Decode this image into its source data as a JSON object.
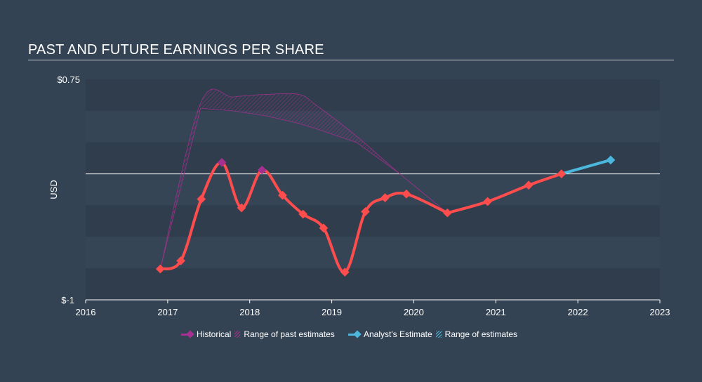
{
  "title": "PAST AND FUTURE EARNINGS PER SHARE",
  "chart_data": {
    "type": "line",
    "title": "PAST AND FUTURE EARNINGS PER SHARE",
    "ylabel": "USD",
    "ylim": [
      -1,
      0.75
    ],
    "xlim": [
      2016,
      2023
    ],
    "y_tick_labels": [
      "$0.75",
      "$-1"
    ],
    "x_tick_labels": [
      "2016",
      "2017",
      "2018",
      "2019",
      "2020",
      "2021",
      "2022",
      "2023"
    ],
    "grid": "horizontal bands",
    "legend_position": "bottom",
    "colors": {
      "historical": "#a6308f",
      "eps_line": "#ff4c4c",
      "analyst": "#4bb7dc"
    },
    "series": [
      {
        "name": "Historical",
        "x": [
          2016.91,
          2017.16,
          2017.41,
          2017.66,
          2017.9,
          2018.15,
          2018.4,
          2018.65,
          2018.9,
          2019.16,
          2019.41,
          2019.65,
          2019.91,
          2020.41
        ],
        "y": [
          -0.755,
          -0.69,
          -0.2,
          0.09,
          -0.27,
          0.03,
          -0.17,
          -0.32,
          -0.43,
          -0.78,
          -0.3,
          -0.19,
          -0.16,
          -0.31
        ]
      },
      {
        "name": "Range of past estimates",
        "x": [
          2016.91,
          2017.4,
          2017.8,
          2018.2,
          2018.6,
          2018.8,
          2019.3,
          2019.83,
          2020.41
        ],
        "upper": [
          -0.755,
          0.56,
          0.61,
          0.63,
          0.63,
          0.55,
          0.3,
          0.0,
          -0.31
        ],
        "lower": [
          -0.755,
          0.52,
          0.5,
          0.46,
          0.4,
          0.36,
          0.25,
          0.0,
          -0.31
        ]
      },
      {
        "name": "Analyst's Estimate",
        "x": [
          2020.41,
          2020.9,
          2021.4,
          2021.8,
          2022.4
        ],
        "y": [
          -0.31,
          -0.22,
          -0.09,
          0.0,
          0.11
        ]
      },
      {
        "name": "Range of estimates",
        "x": [
          2020.41,
          2022.4
        ],
        "upper": [
          -0.31,
          0.11
        ],
        "lower": [
          -0.31,
          0.11
        ]
      }
    ]
  },
  "legend": {
    "historical": "Historical",
    "past_range": "Range of past estimates",
    "analyst": "Analyst's Estimate",
    "est_range": "Range of estimates"
  }
}
